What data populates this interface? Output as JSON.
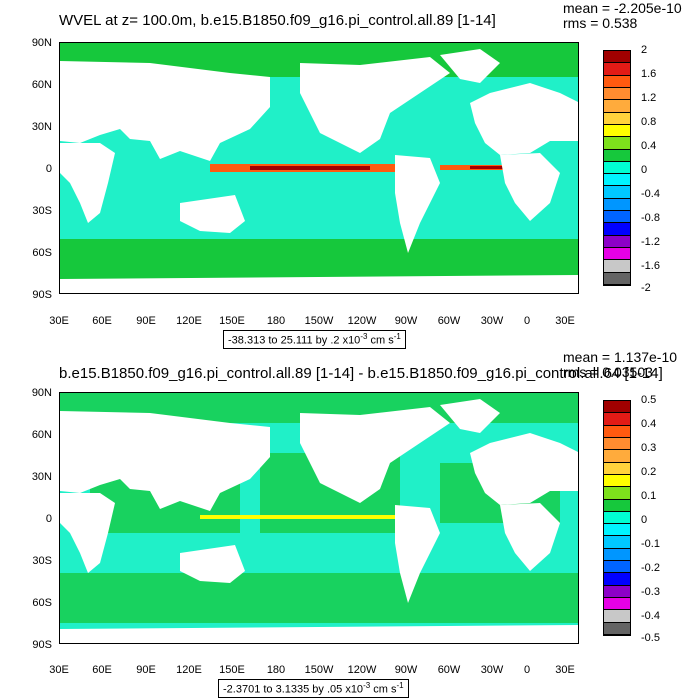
{
  "panels": [
    {
      "title": "WVEL at z= 100.0m, b.e15.B1850.f09_g16.pi_control.all.89 [1-14]",
      "mean": "mean = -2.205e-10",
      "rms": "rms = 0.538",
      "range_label": "-38.313 to 25.111 by .2 x10",
      "range_exp": "-3",
      "range_units": " cm s",
      "range_units_exp": "-1",
      "colorbar_labels": [
        "2",
        "1.6",
        "1.2",
        "0.8",
        "0.4",
        "0",
        "-0.4",
        "-0.8",
        "-1.2",
        "-1.6",
        "-2"
      ]
    },
    {
      "title": "b.e15.B1850.f09_g16.pi_control.all.89 [1-14] - b.e15.B1850.f09_g16.pi_control.all.64 [1-14]",
      "mean": "mean = 1.137e-10",
      "rms": "rms = 0.03503",
      "range_label": "-2.3701 to 3.1335 by .05 x10",
      "range_exp": "-3",
      "range_units": " cm s",
      "range_units_exp": "-1",
      "colorbar_labels": [
        "0.5",
        "0.4",
        "0.3",
        "0.2",
        "0.1",
        "0",
        "-0.1",
        "-0.2",
        "-0.3",
        "-0.4",
        "-0.5"
      ]
    }
  ],
  "lat_labels": [
    "90N",
    "60N",
    "30N",
    "0",
    "30S",
    "60S",
    "90S"
  ],
  "lon_labels": [
    "30E",
    "60E",
    "90E",
    "120E",
    "150E",
    "180",
    "150W",
    "120W",
    "90W",
    "60W",
    "30W",
    "0",
    "30E"
  ],
  "colormap": [
    "#a00000",
    "#e21b16",
    "#ff5a10",
    "#ff8c30",
    "#ffab3c",
    "#ffd23c",
    "#ffff00",
    "#7ee11c",
    "#16c83c",
    "#00ffd2",
    "#00f4ff",
    "#00c8ff",
    "#0096ff",
    "#0064ff",
    "#0000ff",
    "#8c00c8",
    "#e600e6",
    "#c8c8c8",
    "#646464"
  ],
  "ocean_color": "#20f0c8",
  "land_color": "#ffffff"
}
